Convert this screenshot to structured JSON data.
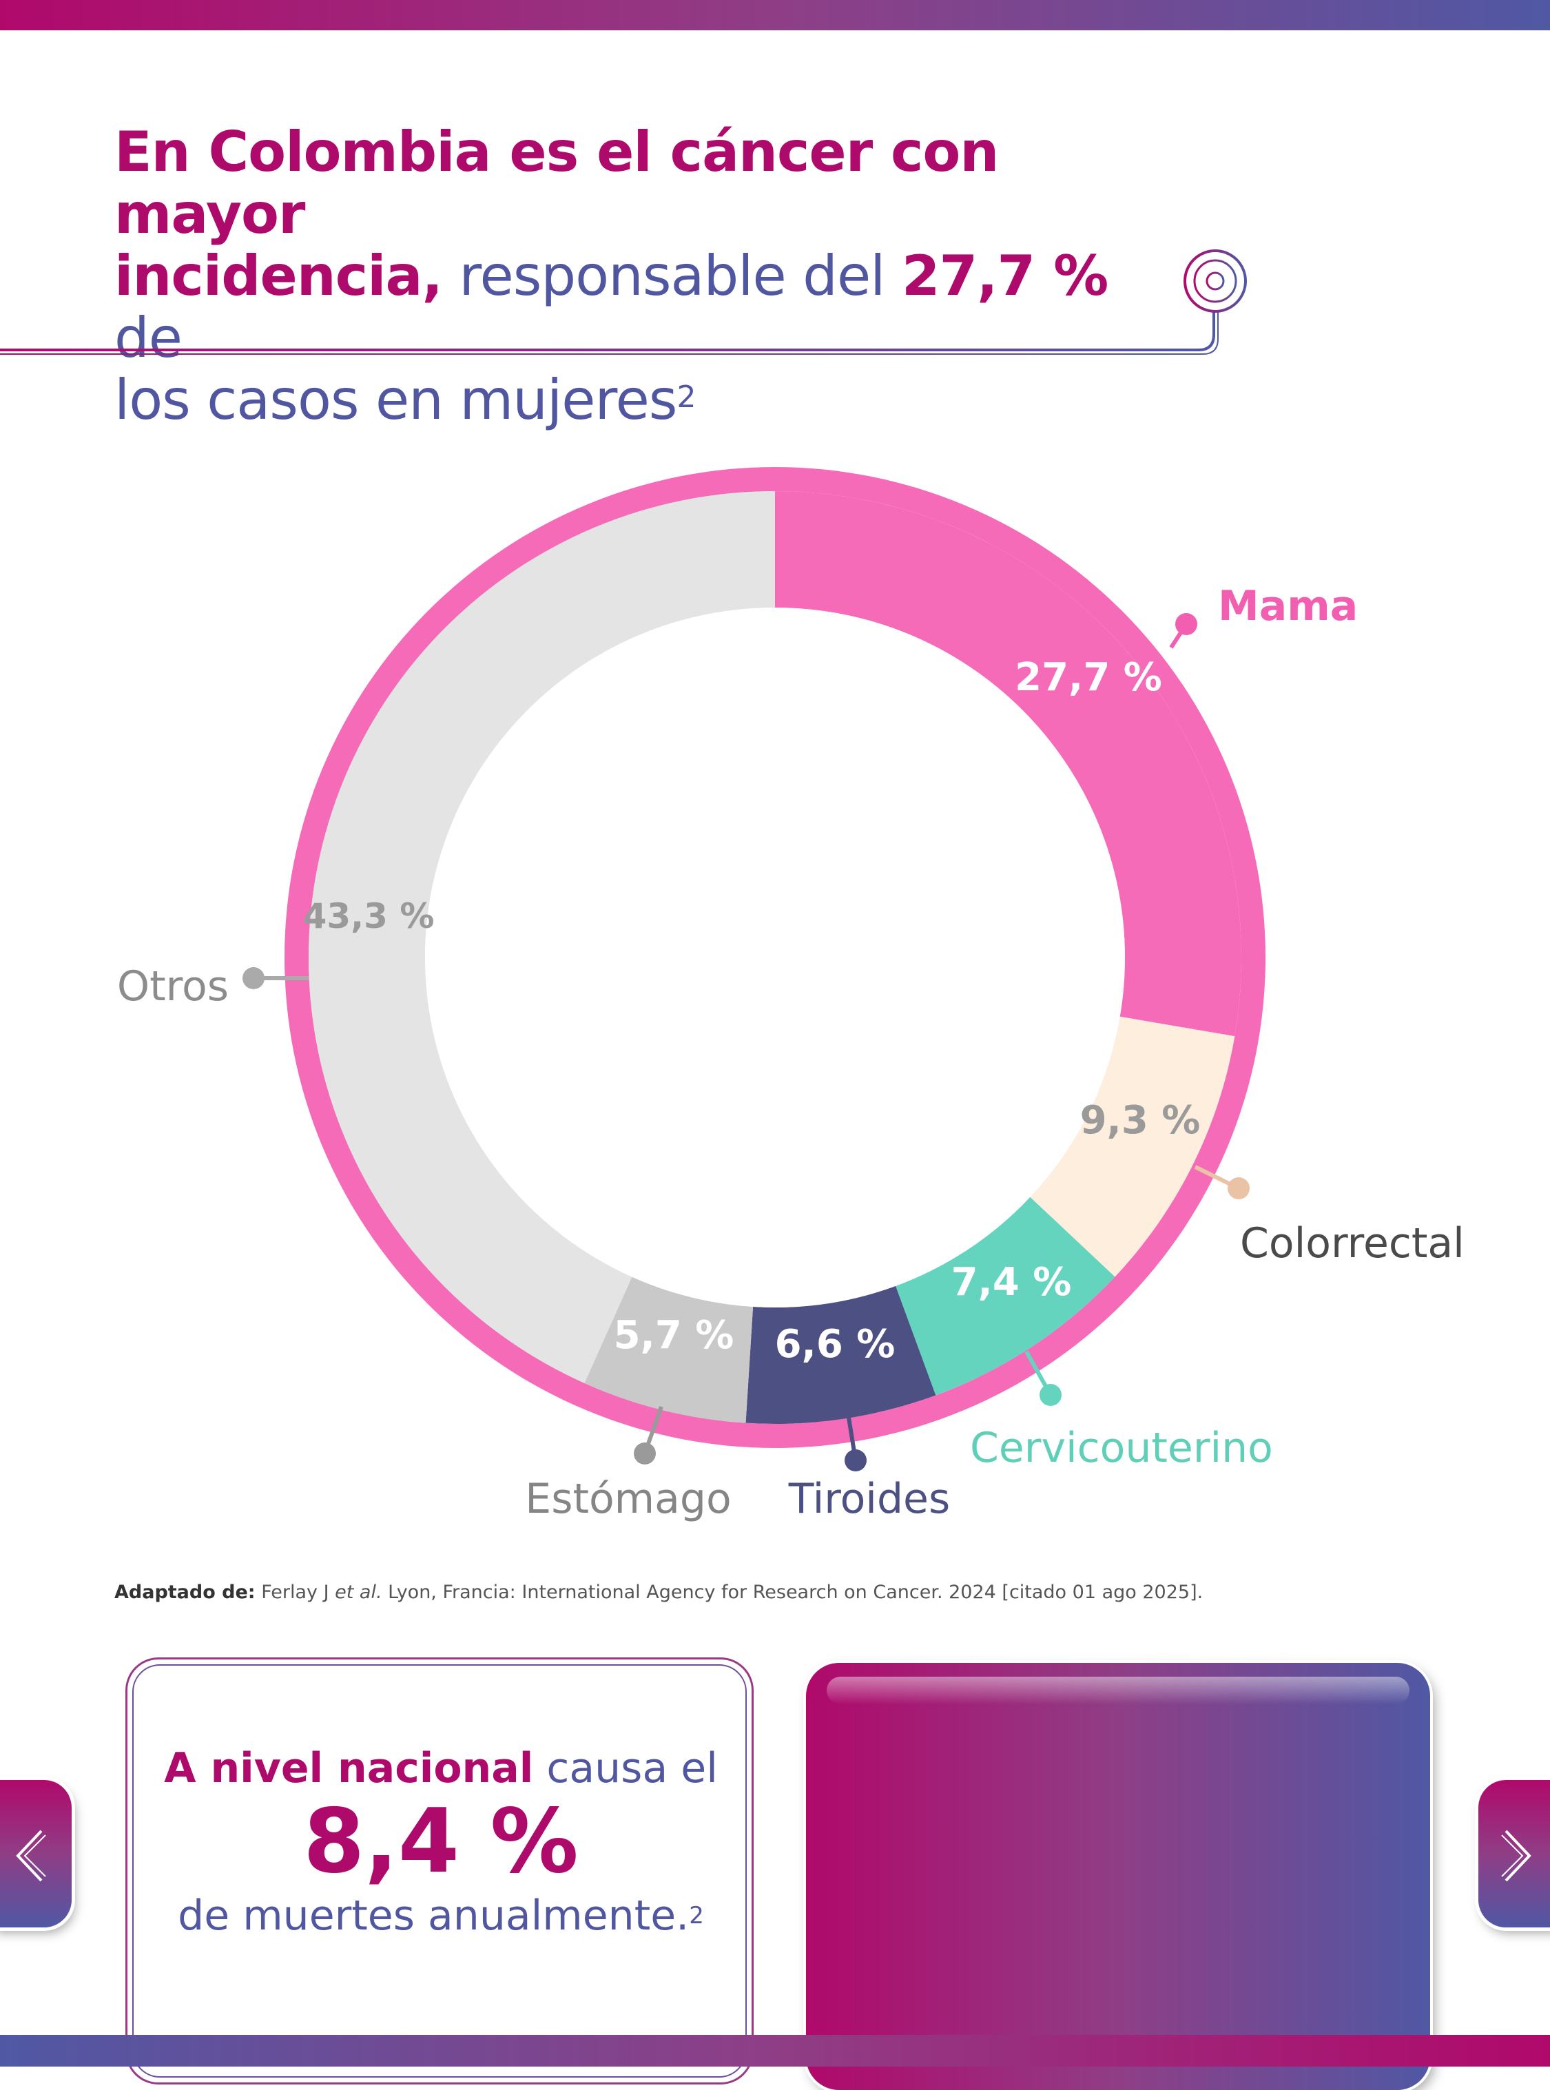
{
  "header": {
    "title_part1": "En Colombia es el cáncer con mayor",
    "title_part2": "incidencia,",
    "title_part3": " responsable del ",
    "title_part4": "27,7 %",
    "title_part5": " de",
    "title_part6": "los casos en mujeres",
    "title_sup": "2"
  },
  "chart_data": {
    "type": "pie",
    "donut": true,
    "categories": [
      "Mama",
      "Colorrectal",
      "Cervicouterino",
      "Tiroides",
      "Estómago",
      "Otros"
    ],
    "values": [
      27.7,
      9.3,
      7.4,
      6.6,
      5.7,
      43.3
    ],
    "value_labels": [
      "27,7 %",
      "9,3 %",
      "7,4 %",
      "6,6 %",
      "5,7 %",
      "43,3 %"
    ],
    "colors": [
      "#f56bb8",
      "#fdeede",
      "#64d4be",
      "#4d5082",
      "#c9c9c9",
      "#e4e4e4"
    ],
    "label_colors": [
      "#f25fb0",
      "#4a4a4a",
      "#5fcfb8",
      "#4d5082",
      "#858585",
      "#8c8c8c"
    ],
    "dot_colors": [
      "#f25fb0",
      "#eac2a6",
      "#64d4be",
      "#4d5082",
      "#9a9a9a",
      "#aaaaaa"
    ],
    "value_label_colors": [
      "#ffffff",
      "#9a9a9a",
      "#ffffff",
      "#ffffff",
      "#ffffff",
      "#9a9a9a"
    ],
    "ring_color": "#f56bb8"
  },
  "source": {
    "prefix": "Adaptado de:",
    "text1": " Ferlay J ",
    "italic": "et al.",
    "text2": " Lyon, Francia: International Agency for Research on Cancer. 2024 [citado 01 ago 2025]."
  },
  "card": {
    "line1_bold": "A nivel nacional",
    "line1_rest": " causa el",
    "big_value": "8,4 %",
    "line3": "de muertes anualmente.",
    "line3_sup": "2"
  },
  "nav": {
    "prev_icon": "chevron-left-icon",
    "next_icon": "chevron-right-icon"
  }
}
